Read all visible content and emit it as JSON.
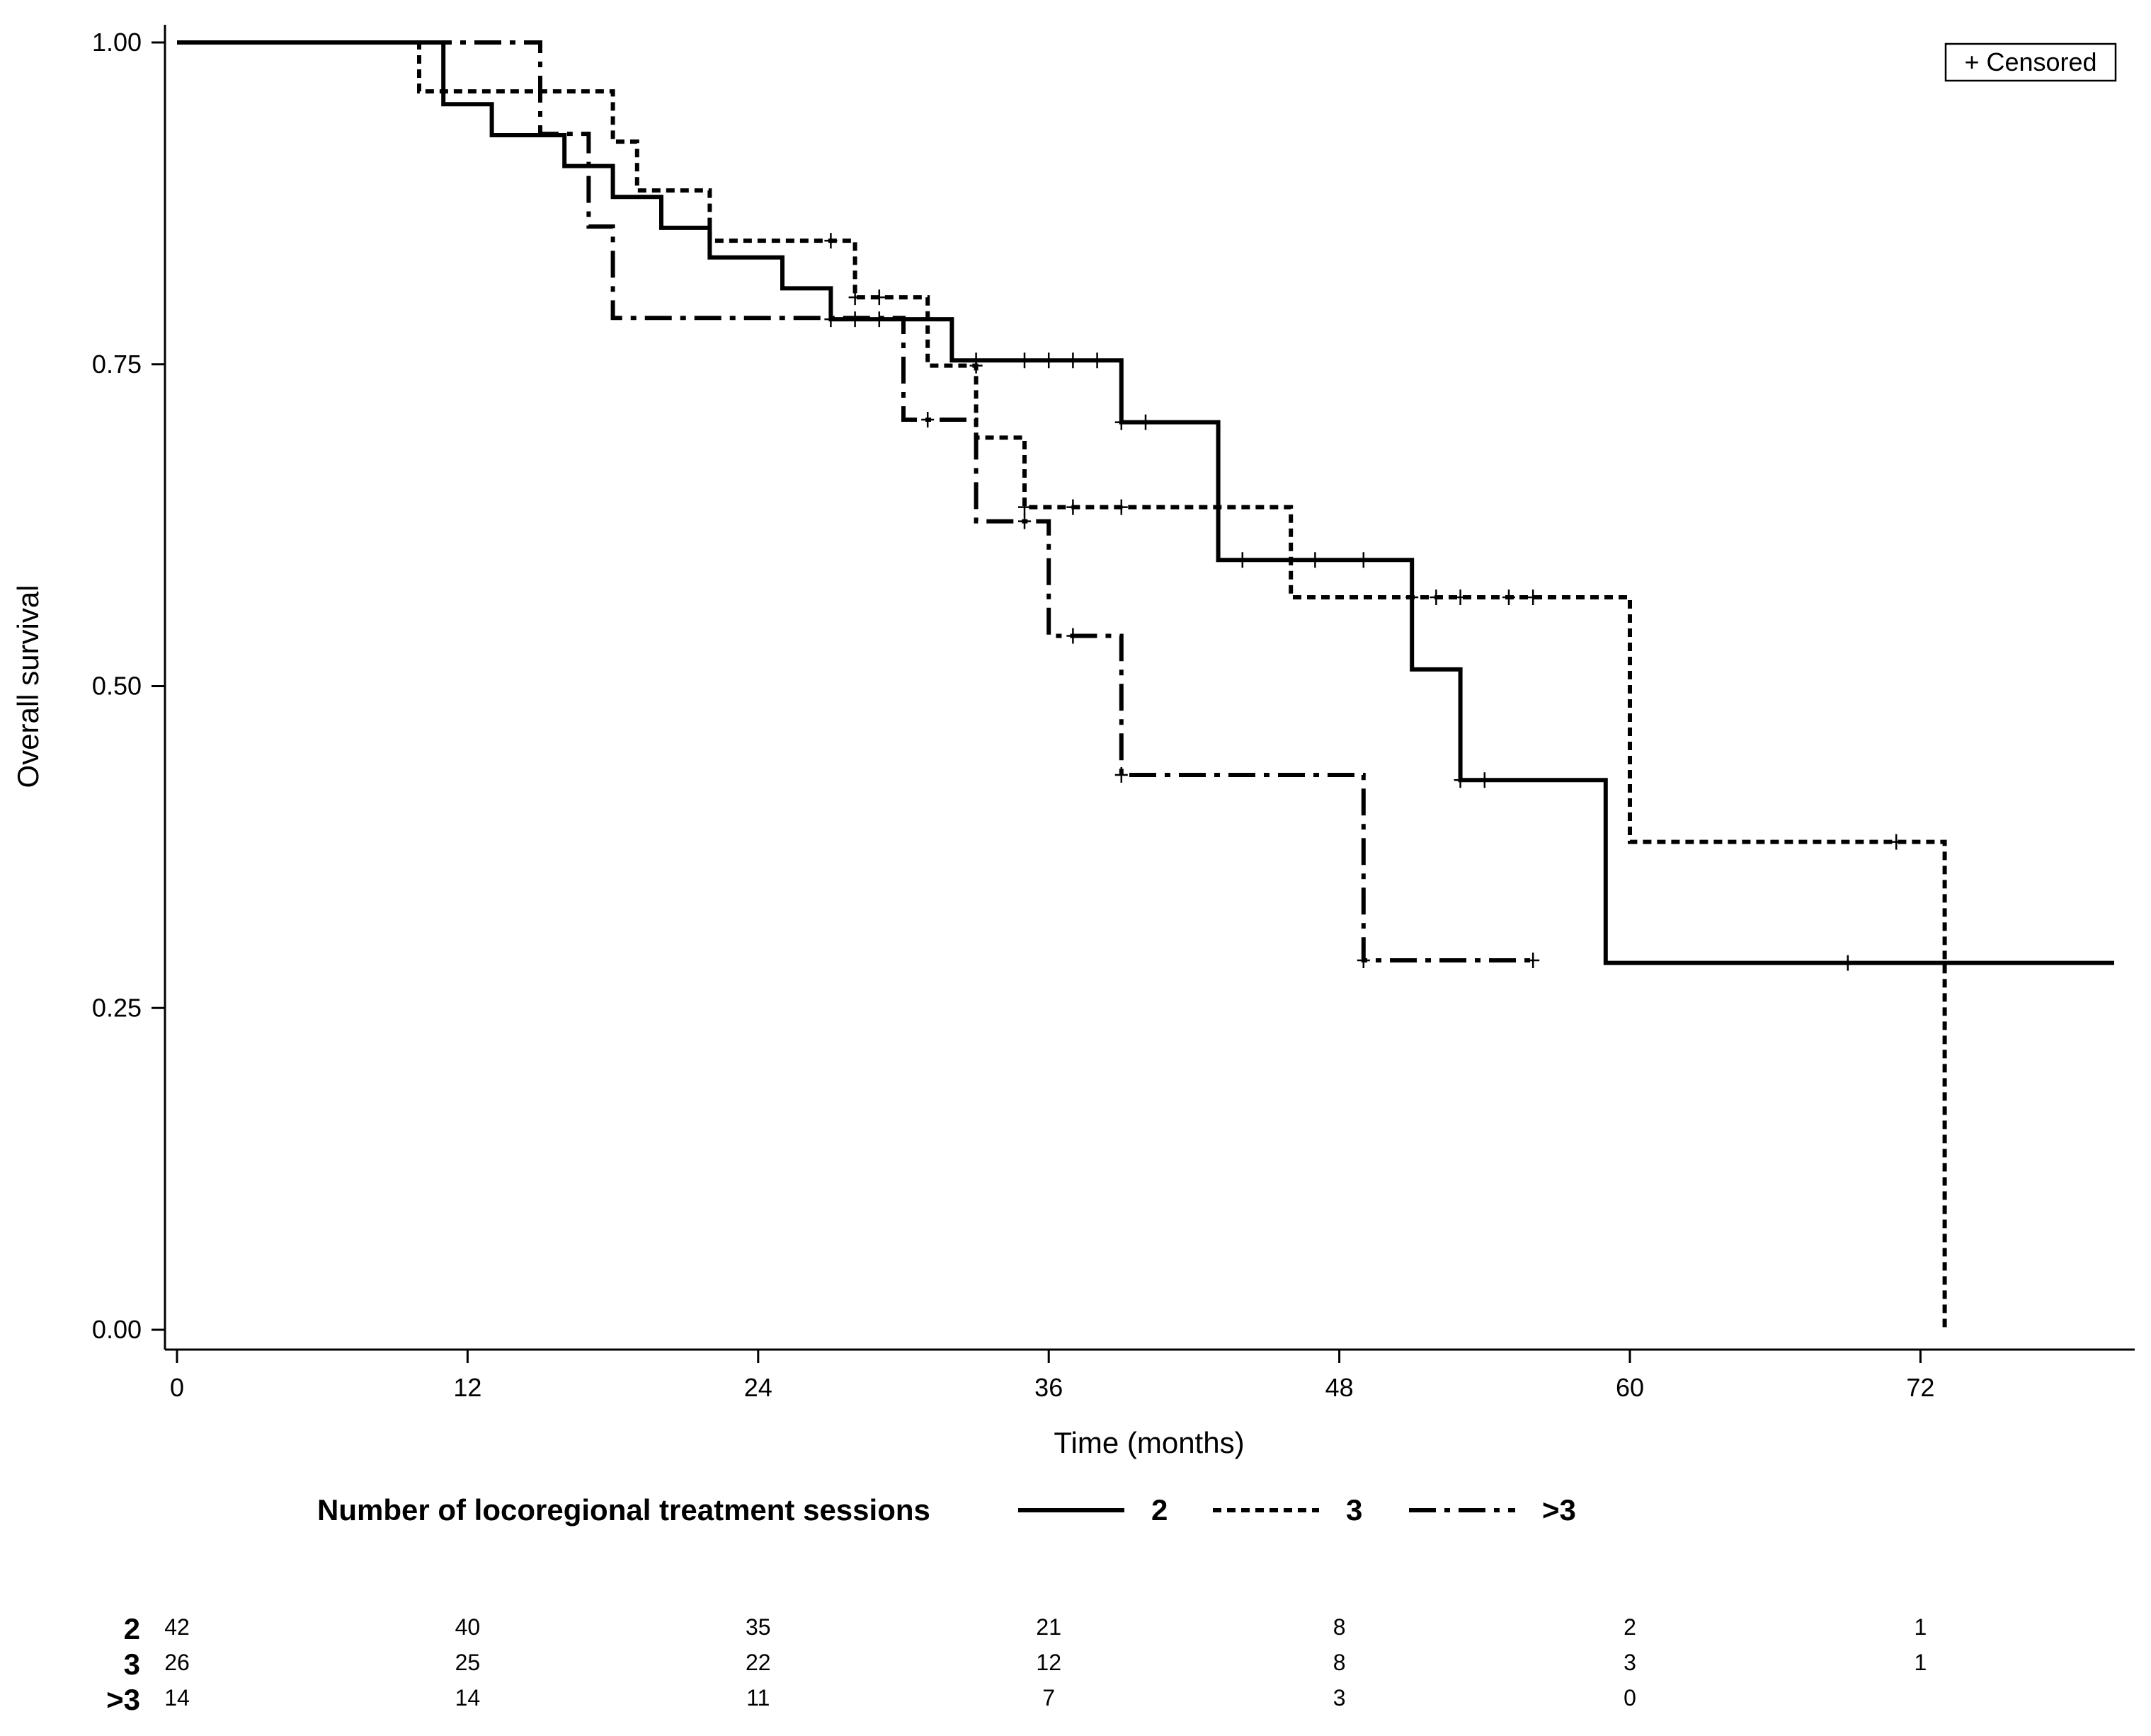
{
  "chart_data": {
    "type": "line",
    "subtype": "kaplan-meier",
    "xlabel": "Time (months)",
    "ylabel": "Overall survival",
    "xlim": [
      0,
      80
    ],
    "ylim": [
      0,
      1
    ],
    "xticks": [
      0,
      12,
      24,
      36,
      48,
      60,
      72
    ],
    "xtick_labels": [
      "0",
      "12",
      "24",
      "36",
      "48",
      "60",
      "72"
    ],
    "yticks": [
      0,
      0.25,
      0.5,
      0.75,
      1
    ],
    "ytick_labels": [
      "0.00",
      "0.25",
      "0.50",
      "0.75",
      "1.00"
    ],
    "censored_legend": "+ Censored",
    "legend_title": "Number of locoregional treatment sessions",
    "series": [
      {
        "name": "2",
        "style": "solid",
        "steps": [
          [
            0,
            1.0
          ],
          [
            11,
            0.952
          ],
          [
            13,
            0.928
          ],
          [
            16,
            0.904
          ],
          [
            18,
            0.88
          ],
          [
            20,
            0.856
          ],
          [
            22,
            0.833
          ],
          [
            25,
            0.809
          ],
          [
            27,
            0.785
          ],
          [
            32,
            0.753
          ],
          [
            39,
            0.705
          ],
          [
            43,
            0.598
          ],
          [
            51,
            0.513
          ],
          [
            53,
            0.427
          ],
          [
            59,
            0.285
          ]
        ],
        "end": 80,
        "censored": [
          [
            27,
            0.785
          ],
          [
            28,
            0.785
          ],
          [
            29,
            0.785
          ],
          [
            33,
            0.753
          ],
          [
            35,
            0.753
          ],
          [
            36,
            0.753
          ],
          [
            37,
            0.753
          ],
          [
            38,
            0.753
          ],
          [
            39,
            0.705
          ],
          [
            40,
            0.705
          ],
          [
            44,
            0.598
          ],
          [
            47,
            0.598
          ],
          [
            49,
            0.598
          ],
          [
            53,
            0.427
          ],
          [
            54,
            0.427
          ],
          [
            69,
            0.285
          ]
        ]
      },
      {
        "name": "3",
        "style": "dotted",
        "steps": [
          [
            0,
            1.0
          ],
          [
            10,
            0.962
          ],
          [
            18,
            0.923
          ],
          [
            19,
            0.885
          ],
          [
            22,
            0.846
          ],
          [
            28,
            0.802
          ],
          [
            31,
            0.749
          ],
          [
            33,
            0.693
          ],
          [
            35,
            0.639
          ],
          [
            46,
            0.569
          ],
          [
            60,
            0.379
          ],
          [
            73,
            0.0
          ]
        ],
        "end": 73,
        "censored": [
          [
            27,
            0.846
          ],
          [
            28,
            0.802
          ],
          [
            29,
            0.802
          ],
          [
            33,
            0.749
          ],
          [
            35,
            0.639
          ],
          [
            37,
            0.639
          ],
          [
            39,
            0.639
          ],
          [
            51,
            0.569
          ],
          [
            52,
            0.569
          ],
          [
            53,
            0.569
          ],
          [
            55,
            0.569
          ],
          [
            56,
            0.569
          ],
          [
            71,
            0.379
          ]
        ]
      },
      {
        "name": ">3",
        "style": "dashdot",
        "steps": [
          [
            0,
            1.0
          ],
          [
            15,
            0.929
          ],
          [
            17,
            0.857
          ],
          [
            18,
            0.786
          ],
          [
            30,
            0.707
          ],
          [
            33,
            0.628
          ],
          [
            36,
            0.539
          ],
          [
            39,
            0.431
          ],
          [
            49,
            0.287
          ]
        ],
        "end": 56,
        "censored": [
          [
            31,
            0.707
          ],
          [
            35,
            0.628
          ],
          [
            37,
            0.539
          ],
          [
            39,
            0.431
          ],
          [
            49,
            0.287
          ],
          [
            56,
            0.287
          ]
        ]
      }
    ],
    "risk_table": {
      "times": [
        0,
        12,
        24,
        36,
        48,
        60,
        72
      ],
      "rows": [
        {
          "group": "2",
          "values": [
            "42",
            "40",
            "35",
            "21",
            "8",
            "2",
            "1"
          ]
        },
        {
          "group": "3",
          "values": [
            "26",
            "25",
            "22",
            "12",
            "8",
            "3",
            "1"
          ]
        },
        {
          "group": ">3",
          "values": [
            "14",
            "14",
            "11",
            "7",
            "3",
            "0",
            ""
          ]
        }
      ]
    }
  }
}
